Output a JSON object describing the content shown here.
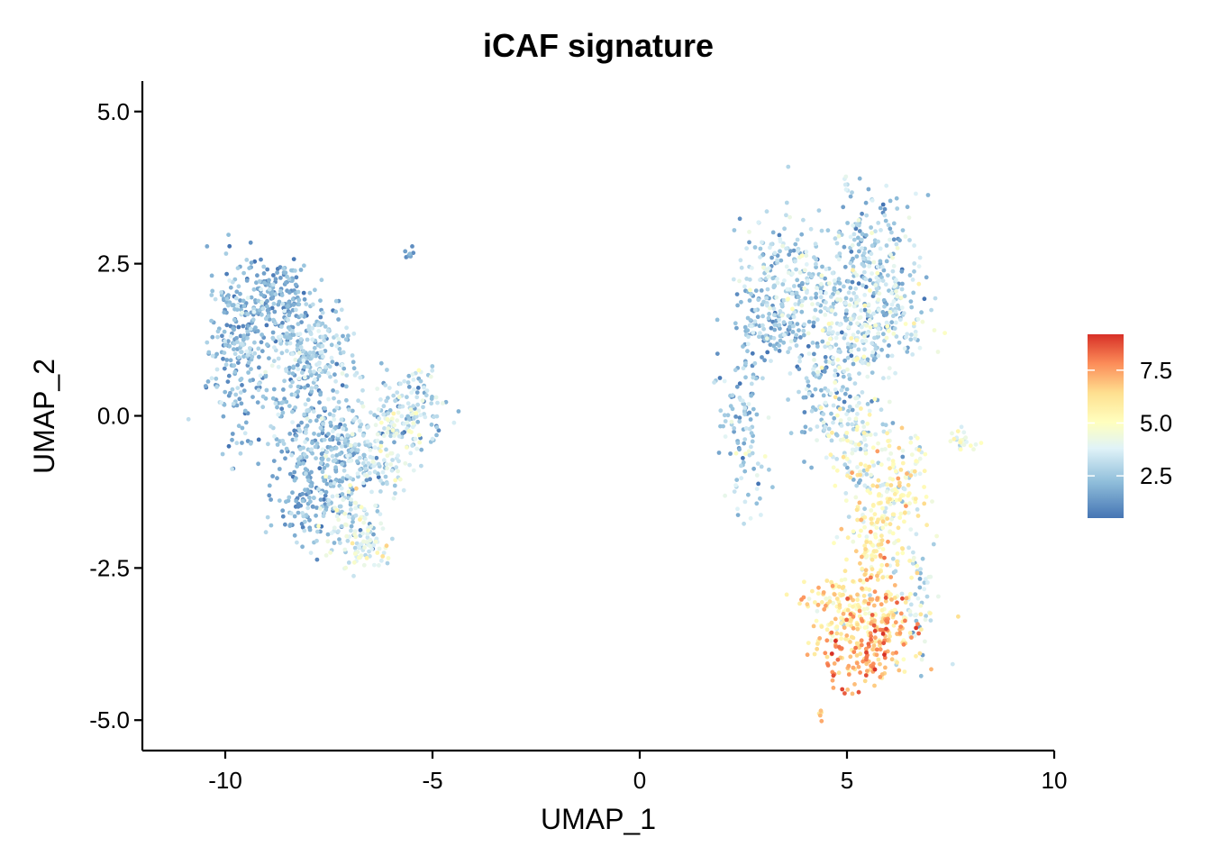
{
  "chart_data": {
    "type": "scatter",
    "title": "iCAF signature",
    "xlabel": "UMAP_1",
    "ylabel": "UMAP_2",
    "xlim": [
      -12.0,
      10.0
    ],
    "ylim": [
      -5.5,
      5.5
    ],
    "x_ticks": [
      -10,
      -5,
      0,
      5,
      10
    ],
    "x_tick_labels": [
      "-10",
      "-5",
      "0",
      "5",
      "10"
    ],
    "y_ticks": [
      5.0,
      2.5,
      0.0,
      -2.5,
      -5.0
    ],
    "y_tick_labels": [
      "5.0",
      "2.5",
      "0.0",
      "-2.5",
      "-5.0"
    ],
    "grid": false,
    "legend": {
      "position": "right",
      "type": "colorbar",
      "range": [
        0.5,
        9.2
      ],
      "ticks": [
        2.5,
        5.0,
        7.5
      ],
      "tick_labels": [
        "2.5",
        "5.0",
        "7.5"
      ],
      "colors": [
        "#4575b4",
        "#91bfdb",
        "#e0f3f8",
        "#ffffbf",
        "#fee090",
        "#fc8d59",
        "#d73027"
      ]
    },
    "clusters": [
      {
        "x": -9.7,
        "y": 1.1,
        "sx": 0.35,
        "sy": 0.75,
        "value": 1.8,
        "vsd": 0.7,
        "n": 220
      },
      {
        "x": -8.9,
        "y": 2.0,
        "sx": 0.5,
        "sy": 0.3,
        "value": 1.5,
        "vsd": 0.6,
        "n": 160
      },
      {
        "x": -8.3,
        "y": 1.3,
        "sx": 0.6,
        "sy": 0.4,
        "value": 2.1,
        "vsd": 0.8,
        "n": 160
      },
      {
        "x": -7.6,
        "y": 0.9,
        "sx": 0.4,
        "sy": 0.3,
        "value": 2.3,
        "vsd": 0.8,
        "n": 70
      },
      {
        "x": -8.2,
        "y": 0.3,
        "sx": 0.5,
        "sy": 0.4,
        "value": 1.8,
        "vsd": 0.7,
        "n": 100
      },
      {
        "x": -7.5,
        "y": -0.5,
        "sx": 0.5,
        "sy": 0.4,
        "value": 1.9,
        "vsd": 0.8,
        "n": 160
      },
      {
        "x": -8.0,
        "y": -1.3,
        "sx": 0.4,
        "sy": 0.4,
        "value": 1.6,
        "vsd": 0.6,
        "n": 130
      },
      {
        "x": -6.8,
        "y": -0.7,
        "sx": 0.4,
        "sy": 0.3,
        "value": 2.2,
        "vsd": 0.9,
        "n": 90
      },
      {
        "x": -7.0,
        "y": -1.7,
        "sx": 0.5,
        "sy": 0.35,
        "value": 3.0,
        "vsd": 1.0,
        "n": 110
      },
      {
        "x": -6.6,
        "y": -2.2,
        "sx": 0.3,
        "sy": 0.2,
        "value": 3.8,
        "vsd": 1.0,
        "n": 50
      },
      {
        "x": -5.6,
        "y": 0.1,
        "sx": 0.45,
        "sy": 0.35,
        "value": 2.8,
        "vsd": 1.0,
        "n": 140
      },
      {
        "x": -6.0,
        "y": -0.6,
        "sx": 0.4,
        "sy": 0.3,
        "value": 3.0,
        "vsd": 1.0,
        "n": 70
      },
      {
        "x": -5.55,
        "y": 2.62,
        "sx": 0.05,
        "sy": 0.05,
        "value": 1.3,
        "vsd": 0.3,
        "n": 8
      },
      {
        "x": 3.4,
        "y": 2.3,
        "sx": 0.5,
        "sy": 0.5,
        "value": 2.5,
        "vsd": 1.0,
        "n": 150
      },
      {
        "x": 3.1,
        "y": 1.5,
        "sx": 0.4,
        "sy": 0.3,
        "value": 2.0,
        "vsd": 0.8,
        "n": 120
      },
      {
        "x": 4.5,
        "y": 1.8,
        "sx": 0.5,
        "sy": 0.6,
        "value": 2.5,
        "vsd": 1.0,
        "n": 160
      },
      {
        "x": 5.6,
        "y": 2.6,
        "sx": 0.45,
        "sy": 0.5,
        "value": 2.2,
        "vsd": 1.0,
        "n": 170
      },
      {
        "x": 6.0,
        "y": 1.7,
        "sx": 0.5,
        "sy": 0.45,
        "value": 2.8,
        "vsd": 1.1,
        "n": 150
      },
      {
        "x": 5.2,
        "y": 1.2,
        "sx": 0.4,
        "sy": 0.4,
        "value": 2.6,
        "vsd": 1.0,
        "n": 80
      },
      {
        "x": 2.4,
        "y": 0.1,
        "sx": 0.25,
        "sy": 0.4,
        "value": 2.0,
        "vsd": 0.8,
        "n": 70
      },
      {
        "x": 2.6,
        "y": -0.9,
        "sx": 0.25,
        "sy": 0.4,
        "value": 2.5,
        "vsd": 1.0,
        "n": 40
      },
      {
        "x": 4.5,
        "y": 0.3,
        "sx": 0.4,
        "sy": 0.45,
        "value": 2.3,
        "vsd": 0.9,
        "n": 90
      },
      {
        "x": 5.3,
        "y": -0.3,
        "sx": 0.4,
        "sy": 0.5,
        "value": 3.5,
        "vsd": 1.2,
        "n": 110
      },
      {
        "x": 5.8,
        "y": -1.3,
        "sx": 0.45,
        "sy": 0.5,
        "value": 4.6,
        "vsd": 1.3,
        "n": 130
      },
      {
        "x": 6.4,
        "y": -1.2,
        "sx": 0.25,
        "sy": 0.5,
        "value": 4.2,
        "vsd": 1.2,
        "n": 60
      },
      {
        "x": 5.6,
        "y": -2.3,
        "sx": 0.35,
        "sy": 0.4,
        "value": 5.5,
        "vsd": 1.2,
        "n": 90
      },
      {
        "x": 6.7,
        "y": -3.0,
        "sx": 0.3,
        "sy": 0.5,
        "value": 3.2,
        "vsd": 1.2,
        "n": 60
      },
      {
        "x": 4.9,
        "y": -3.2,
        "sx": 0.45,
        "sy": 0.3,
        "value": 5.6,
        "vsd": 1.1,
        "n": 130
      },
      {
        "x": 5.9,
        "y": -3.4,
        "sx": 0.5,
        "sy": 0.3,
        "value": 6.6,
        "vsd": 1.1,
        "n": 130
      },
      {
        "x": 5.2,
        "y": -4.0,
        "sx": 0.5,
        "sy": 0.25,
        "value": 7.0,
        "vsd": 1.0,
        "n": 110
      },
      {
        "x": 7.8,
        "y": -0.4,
        "sx": 0.2,
        "sy": 0.1,
        "value": 3.8,
        "vsd": 1.0,
        "n": 25
      },
      {
        "x": 4.95,
        "y": 3.9,
        "sx": 0.04,
        "sy": 0.12,
        "value": 2.5,
        "vsd": 0.6,
        "n": 6
      },
      {
        "x": 4.4,
        "y": -4.9,
        "sx": 0.04,
        "sy": 0.06,
        "value": 7.0,
        "vsd": 0.5,
        "n": 5
      }
    ]
  }
}
